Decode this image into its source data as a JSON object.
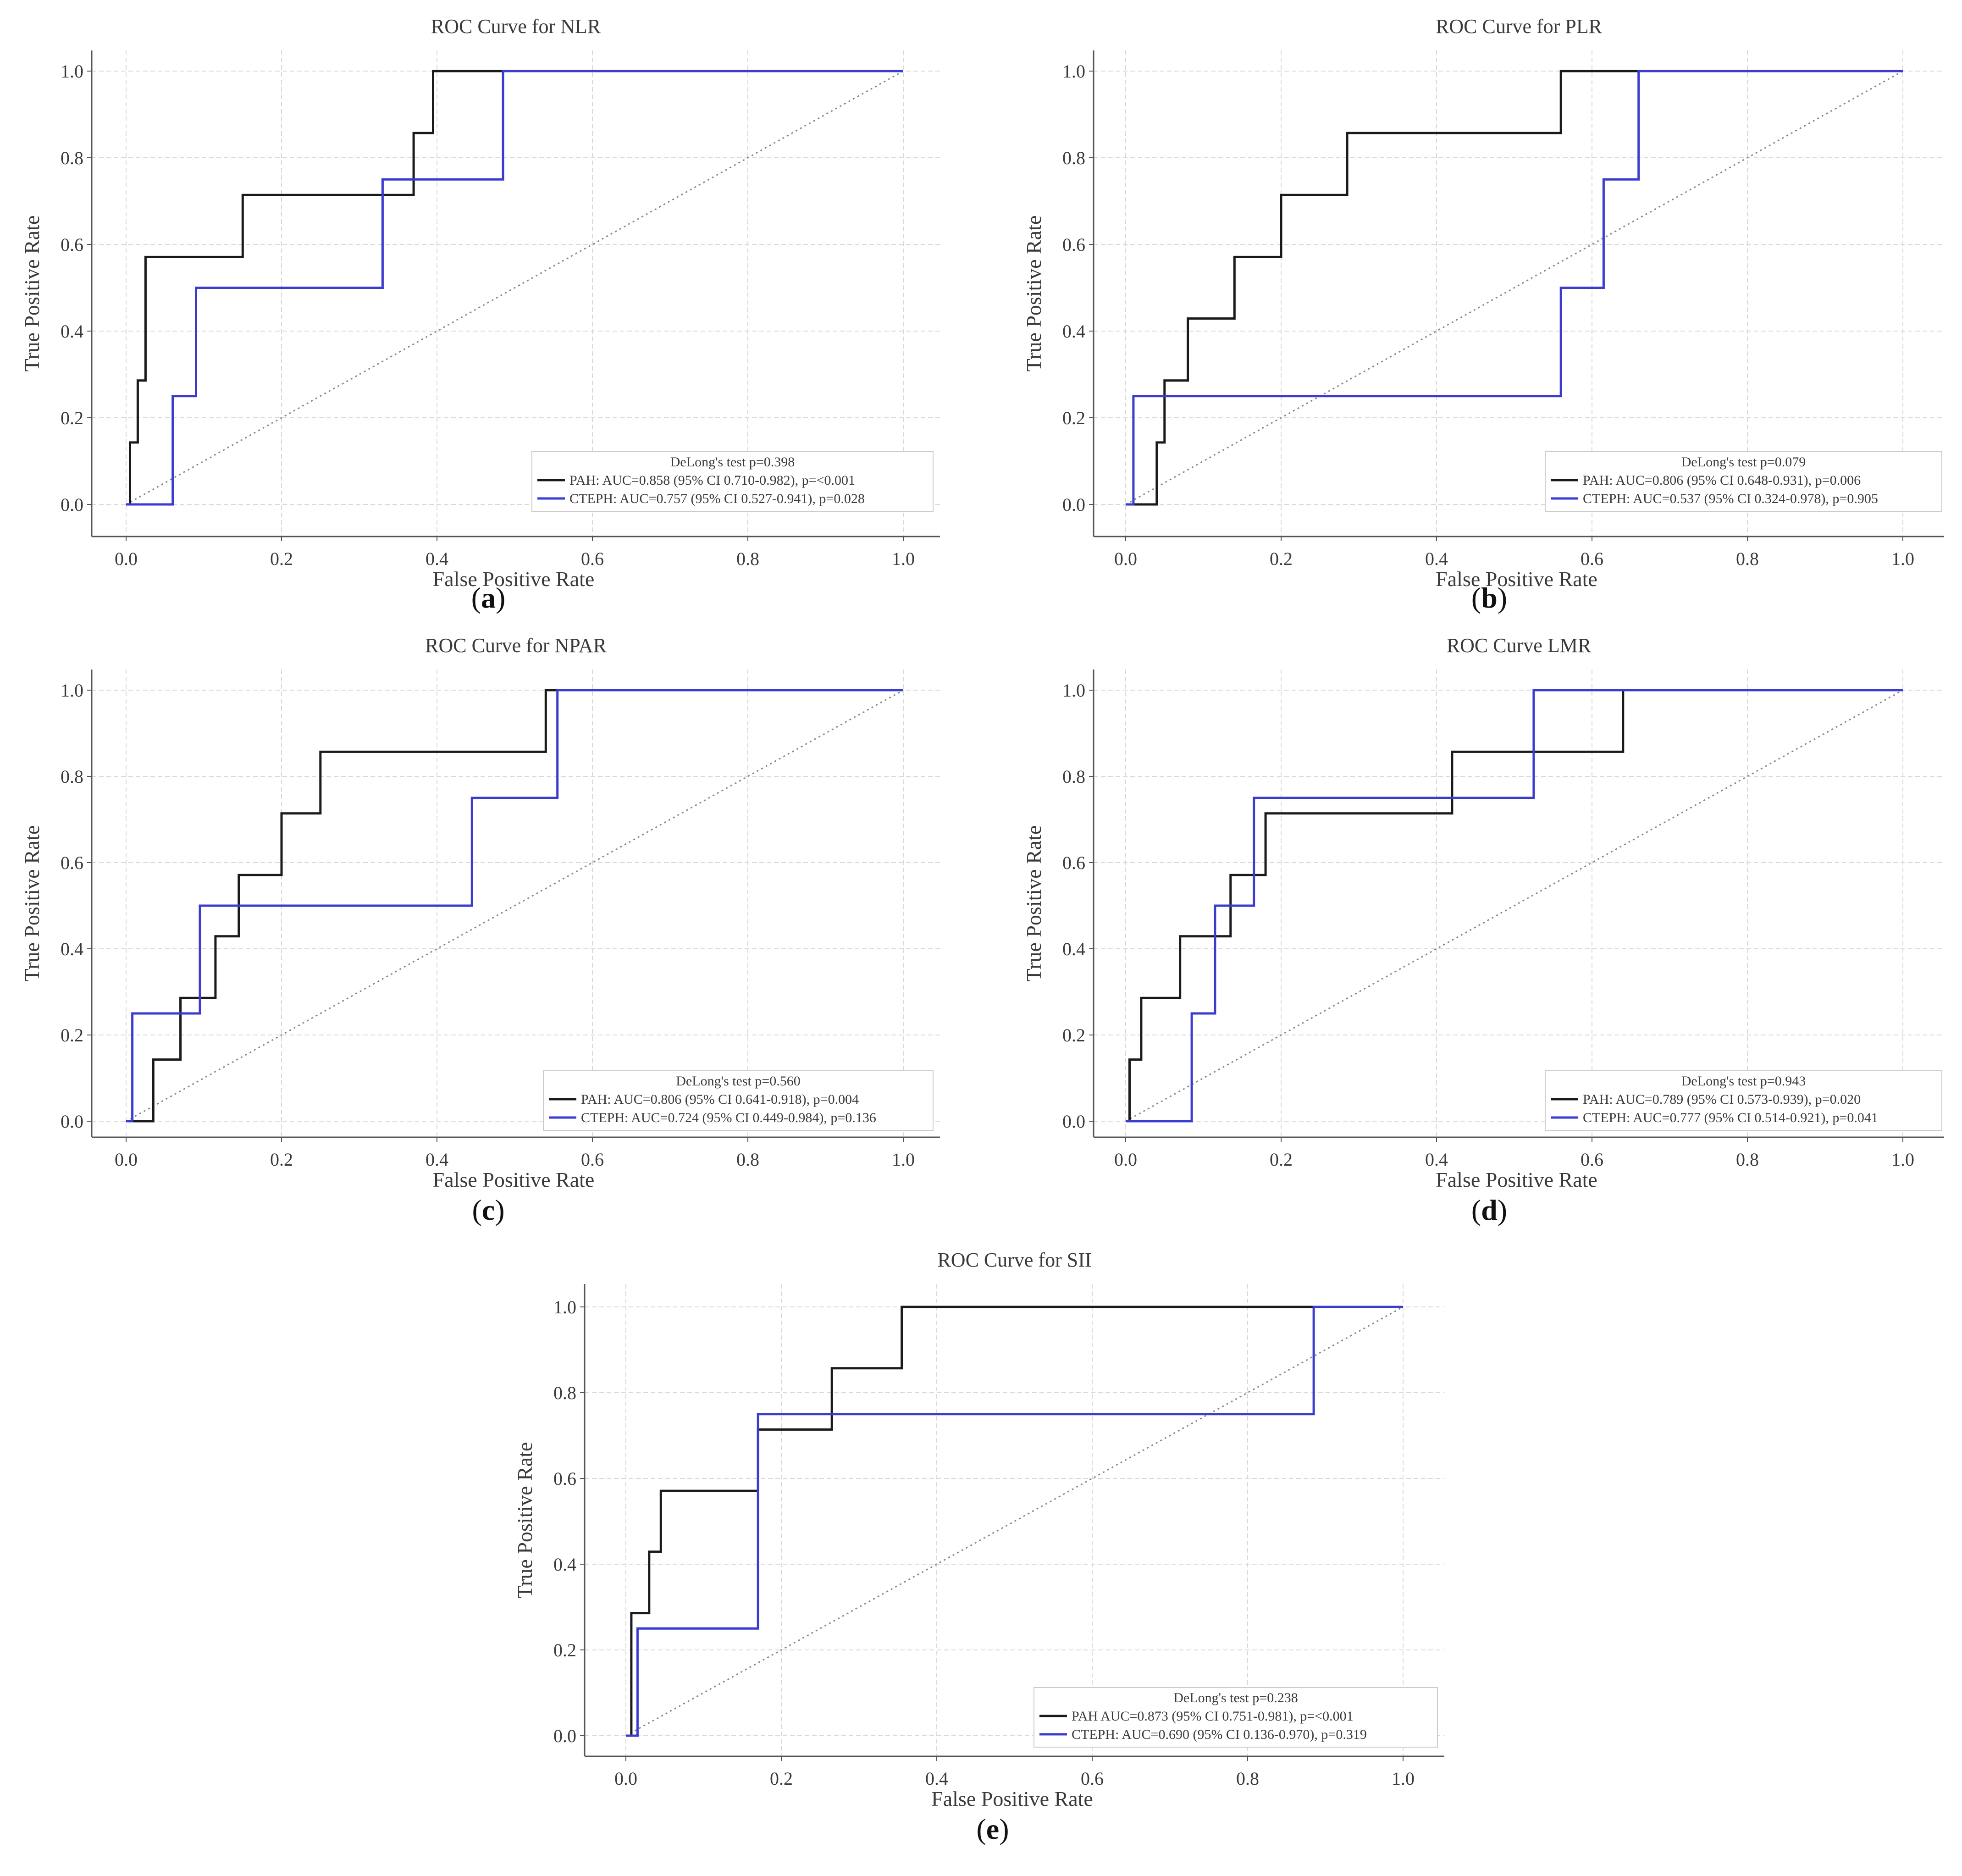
{
  "figure": {
    "panels": [
      {
        "id": "a",
        "label": "a"
      },
      {
        "id": "b",
        "label": "b"
      },
      {
        "id": "c",
        "label": "c"
      },
      {
        "id": "d",
        "label": "d"
      },
      {
        "id": "e",
        "label": "e"
      }
    ]
  },
  "colors": {
    "pah": "#1a1a1a",
    "cteph": "#3b3bd0",
    "diagonal": "#888888",
    "grid": "#d9d9d9",
    "axes": "#555555"
  },
  "chart_data": [
    {
      "type": "line",
      "title": "ROC Curve for NLR",
      "xlabel": "False Positive Rate",
      "ylabel": "True Positive Rate",
      "xlim": [
        0,
        1
      ],
      "ylim": [
        0,
        1
      ],
      "xticks": [
        "0.0",
        "0.2",
        "0.4",
        "0.6",
        "0.8",
        "1.0"
      ],
      "yticks": [
        "0.0",
        "0.2",
        "0.4",
        "0.6",
        "0.8",
        "1.0"
      ],
      "grid": true,
      "legend_position": "bottom-right",
      "legend_title": "DeLong's test  p=0.398",
      "series": [
        {
          "name": "PAH: AUC=0.858 (95% CI 0.710-0.982), p=<0.001",
          "x": [
            0,
            0.005,
            0.005,
            0.015,
            0.015,
            0.025,
            0.025,
            0.15,
            0.15,
            0.37,
            0.37,
            0.395,
            0.395,
            1
          ],
          "y": [
            0,
            0,
            0.143,
            0.143,
            0.286,
            0.286,
            0.571,
            0.571,
            0.714,
            0.714,
            0.857,
            0.857,
            1,
            1
          ]
        },
        {
          "name": "CTEPH: AUC=0.757 (95% CI 0.527-0.941), p=0.028",
          "x": [
            0,
            0.06,
            0.06,
            0.09,
            0.09,
            0.33,
            0.33,
            0.485,
            0.485,
            1
          ],
          "y": [
            0,
            0,
            0.25,
            0.25,
            0.5,
            0.5,
            0.75,
            0.75,
            1,
            1
          ]
        }
      ]
    },
    {
      "type": "line",
      "title": "ROC Curve for PLR",
      "xlabel": "False Positive Rate",
      "ylabel": "True Positive Rate",
      "xlim": [
        0,
        1
      ],
      "ylim": [
        0,
        1
      ],
      "xticks": [
        "0.0",
        "0.2",
        "0.4",
        "0.6",
        "0.8",
        "1.0"
      ],
      "yticks": [
        "0.0",
        "0.2",
        "0.4",
        "0.6",
        "0.8",
        "1.0"
      ],
      "grid": true,
      "legend_position": "bottom-right",
      "legend_title": "DeLong's test p=0.079",
      "series": [
        {
          "name": "PAH: AUC=0.806 (95% CI 0.648-0.931), p=0.006",
          "x": [
            0,
            0.04,
            0.04,
            0.05,
            0.05,
            0.08,
            0.08,
            0.14,
            0.14,
            0.2,
            0.2,
            0.285,
            0.285,
            0.56,
            0.56,
            1
          ],
          "y": [
            0,
            0,
            0.143,
            0.143,
            0.286,
            0.286,
            0.429,
            0.429,
            0.571,
            0.571,
            0.714,
            0.714,
            0.857,
            0.857,
            1,
            1
          ]
        },
        {
          "name": "CTEPH: AUC=0.537 (95% CI 0.324-0.978), p=0.905",
          "x": [
            0,
            0.01,
            0.01,
            0.56,
            0.56,
            0.615,
            0.615,
            0.66,
            0.66,
            1
          ],
          "y": [
            0,
            0,
            0.25,
            0.25,
            0.5,
            0.5,
            0.75,
            0.75,
            1,
            1
          ]
        }
      ]
    },
    {
      "type": "line",
      "title": "ROC Curve for NPAR",
      "xlabel": "False Positive Rate",
      "ylabel": "True Positive Rate",
      "xlim": [
        0,
        1
      ],
      "ylim": [
        0,
        1
      ],
      "xticks": [
        "0.0",
        "0.2",
        "0.4",
        "0.6",
        "0.8",
        "1.0"
      ],
      "yticks": [
        "0.0",
        "0.2",
        "0.4",
        "0.6",
        "0.8",
        "1.0"
      ],
      "grid": true,
      "legend_position": "bottom-right",
      "legend_title": "DeLong's test p=0.560",
      "series": [
        {
          "name": "PAH: AUC=0.806 (95% CI 0.641-0.918), p=0.004",
          "x": [
            0,
            0.035,
            0.035,
            0.07,
            0.07,
            0.115,
            0.115,
            0.145,
            0.145,
            0.2,
            0.2,
            0.25,
            0.25,
            0.54,
            0.54,
            1
          ],
          "y": [
            0,
            0,
            0.143,
            0.143,
            0.286,
            0.286,
            0.429,
            0.429,
            0.571,
            0.571,
            0.714,
            0.714,
            0.857,
            0.857,
            1,
            1
          ]
        },
        {
          "name": "CTEPH: AUC=0.724 (95% CI 0.449-0.984), p=0.136",
          "x": [
            0,
            0.008,
            0.008,
            0.095,
            0.095,
            0.445,
            0.445,
            0.555,
            0.555,
            1
          ],
          "y": [
            0,
            0,
            0.25,
            0.25,
            0.5,
            0.5,
            0.75,
            0.75,
            1,
            1
          ]
        }
      ]
    },
    {
      "type": "line",
      "title": "ROC Curve LMR",
      "xlabel": "False Positive Rate",
      "ylabel": "True Positive Rate",
      "xlim": [
        0,
        1
      ],
      "ylim": [
        0,
        1
      ],
      "xticks": [
        "0.0",
        "0.2",
        "0.4",
        "0.6",
        "0.8",
        "1.0"
      ],
      "yticks": [
        "0.0",
        "0.2",
        "0.4",
        "0.6",
        "0.8",
        "1.0"
      ],
      "grid": true,
      "legend_position": "bottom-right",
      "legend_title": "DeLong's test p=0.943",
      "series": [
        {
          "name": "PAH: AUC=0.789 (95% CI 0.573-0.939), p=0.020",
          "x": [
            0,
            0.005,
            0.005,
            0.02,
            0.02,
            0.07,
            0.07,
            0.135,
            0.135,
            0.18,
            0.18,
            0.42,
            0.42,
            0.64,
            0.64,
            1
          ],
          "y": [
            0,
            0,
            0.143,
            0.143,
            0.286,
            0.286,
            0.429,
            0.429,
            0.571,
            0.571,
            0.714,
            0.714,
            0.857,
            0.857,
            1,
            1
          ]
        },
        {
          "name": "CTEPH: AUC=0.777 (95% CI 0.514-0.921), p=0.041",
          "x": [
            0,
            0.085,
            0.085,
            0.115,
            0.115,
            0.165,
            0.165,
            0.525,
            0.525,
            1
          ],
          "y": [
            0,
            0,
            0.25,
            0.25,
            0.5,
            0.5,
            0.75,
            0.75,
            1,
            1
          ]
        }
      ]
    },
    {
      "type": "line",
      "title": "ROC Curve for SII",
      "xlabel": "False Positive Rate",
      "ylabel": "True Positive Rate",
      "xlim": [
        0,
        1
      ],
      "ylim": [
        0,
        1
      ],
      "xticks": [
        "0.0",
        "0.2",
        "0.4",
        "0.6",
        "0.8",
        "1.0"
      ],
      "yticks": [
        "0.0",
        "0.2",
        "0.4",
        "0.6",
        "0.8",
        "1.0"
      ],
      "grid": true,
      "legend_position": "bottom-right",
      "legend_title": "DeLong's test  p=0.238",
      "series": [
        {
          "name": "PAH AUC=0.873 (95% CI 0.751-0.981), p=<0.001",
          "x": [
            0,
            0.007,
            0.007,
            0.03,
            0.03,
            0.045,
            0.045,
            0.17,
            0.17,
            0.265,
            0.265,
            0.355,
            0.355,
            1
          ],
          "y": [
            0,
            0,
            0.286,
            0.286,
            0.429,
            0.429,
            0.571,
            0.571,
            0.714,
            0.714,
            0.857,
            0.857,
            1,
            1
          ]
        },
        {
          "name": "CTEPH: AUC=0.690 (95% CI 0.136-0.970), p=0.319",
          "x": [
            0,
            0.015,
            0.015,
            0.17,
            0.17,
            0.885,
            0.885,
            1
          ],
          "y": [
            0,
            0,
            0.25,
            0.25,
            0.75,
            0.75,
            1,
            1
          ]
        }
      ]
    }
  ]
}
